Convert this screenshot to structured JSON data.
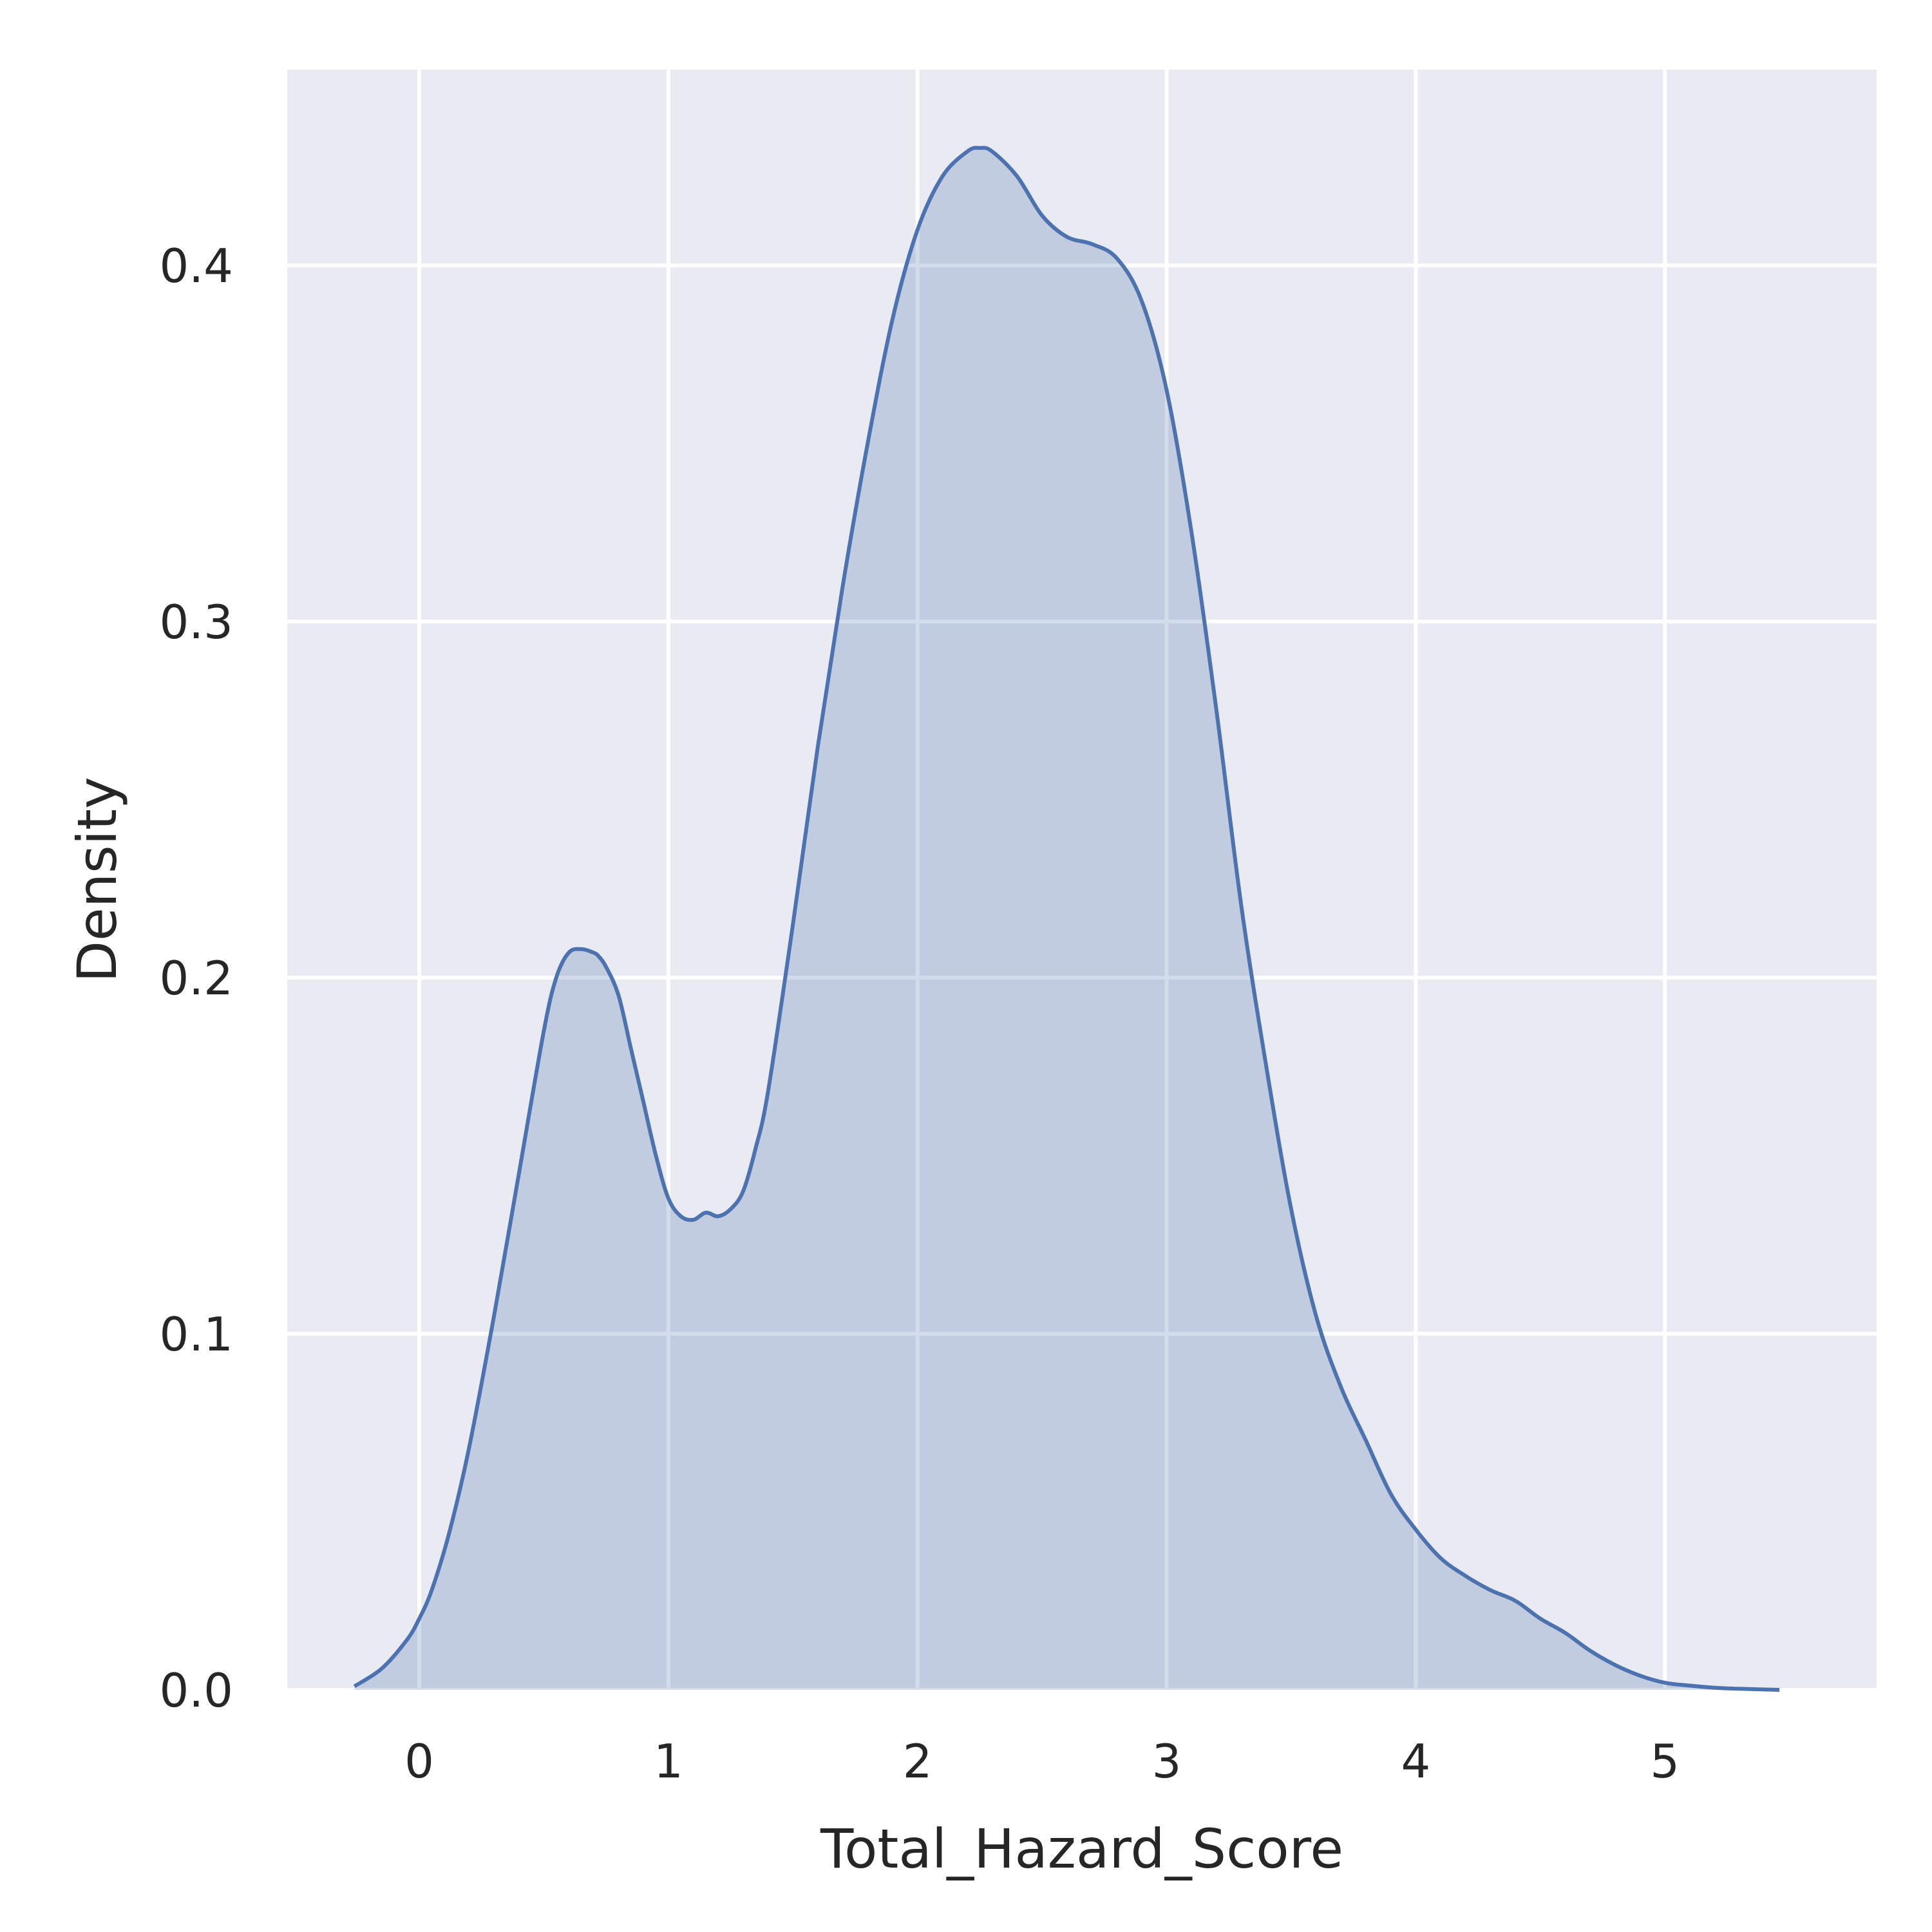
{
  "chart_data": {
    "type": "area",
    "xlabel": "Total_Hazard_Score",
    "ylabel": "Density",
    "xlim": [
      -0.53,
      5.85
    ],
    "ylim": [
      0,
      0.455
    ],
    "xticks": [
      0,
      1,
      2,
      3,
      4,
      5
    ],
    "yticks": [
      0.0,
      0.1,
      0.2,
      0.3,
      0.4
    ],
    "xtick_labels": [
      "0",
      "1",
      "2",
      "3",
      "4",
      "5"
    ],
    "ytick_labels": [
      "0.0",
      "0.1",
      "0.2",
      "0.3",
      "0.4"
    ],
    "grid": true,
    "legend": "none",
    "colors": {
      "background": "#EAEAF2",
      "grid": "#FFFFFF",
      "line": "#4C72B0",
      "fill": "#4C72B0"
    },
    "series": [
      {
        "x": [
          -0.26,
          -0.15,
          -0.05,
          0.0,
          0.05,
          0.12,
          0.2,
          0.3,
          0.4,
          0.5,
          0.55,
          0.6,
          0.65,
          0.7,
          0.72,
          0.75,
          0.8,
          0.85,
          0.9,
          0.95,
          1.0,
          1.05,
          1.1,
          1.15,
          1.2,
          1.25,
          1.3,
          1.35,
          1.4,
          1.5,
          1.6,
          1.7,
          1.8,
          1.9,
          2.0,
          2.1,
          2.2,
          2.25,
          2.3,
          2.4,
          2.5,
          2.6,
          2.7,
          2.8,
          2.9,
          3.0,
          3.1,
          3.2,
          3.3,
          3.4,
          3.5,
          3.6,
          3.7,
          3.8,
          3.9,
          4.0,
          4.1,
          4.2,
          4.3,
          4.4,
          4.5,
          4.6,
          4.7,
          4.8,
          4.9,
          5.0,
          5.1,
          5.2,
          5.3,
          5.46
        ],
        "y": [
          0.001,
          0.006,
          0.014,
          0.02,
          0.028,
          0.044,
          0.068,
          0.105,
          0.145,
          0.185,
          0.2,
          0.207,
          0.208,
          0.207,
          0.206,
          0.203,
          0.195,
          0.18,
          0.165,
          0.15,
          0.138,
          0.133,
          0.132,
          0.134,
          0.133,
          0.135,
          0.14,
          0.152,
          0.168,
          0.215,
          0.265,
          0.31,
          0.35,
          0.385,
          0.41,
          0.425,
          0.432,
          0.433,
          0.432,
          0.425,
          0.414,
          0.408,
          0.406,
          0.402,
          0.39,
          0.365,
          0.325,
          0.275,
          0.22,
          0.175,
          0.135,
          0.105,
          0.085,
          0.07,
          0.055,
          0.045,
          0.037,
          0.032,
          0.028,
          0.025,
          0.02,
          0.016,
          0.011,
          0.007,
          0.004,
          0.002,
          0.0012,
          0.0006,
          0.0003,
          0.0
        ]
      }
    ]
  }
}
